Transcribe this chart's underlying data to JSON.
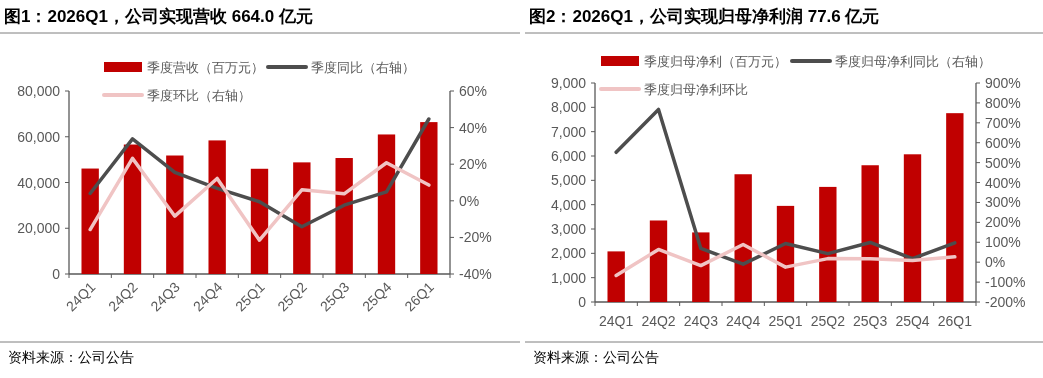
{
  "chart_data": [
    {
      "type": "bar",
      "title": "图1：2026Q1，公司实现营收 664.0 亿元",
      "categories": [
        "24Q1",
        "24Q2",
        "24Q3",
        "24Q4",
        "25Q1",
        "25Q2",
        "25Q3",
        "25Q4",
        "26Q1"
      ],
      "series": [
        {
          "name": "季度营收（百万元）",
          "color": "#c00000",
          "values": [
            46100,
            56600,
            51800,
            58400,
            46000,
            48800,
            50700,
            61000,
            66400
          ]
        },
        {
          "name": "季度同比（右轴）",
          "type": "line",
          "axis": "y2",
          "color": "#4d4d4d",
          "values": [
            4,
            33.8,
            15.5,
            6.8,
            -0.5,
            -14.2,
            -2.4,
            4.9,
            44.7
          ]
        },
        {
          "name": "季度环比（右轴）",
          "type": "line",
          "axis": "y2",
          "color": "#f0c4c4",
          "values": [
            -15.7,
            23.2,
            -8.4,
            12.2,
            -21.5,
            6,
            3.8,
            20.8,
            8.6
          ]
        }
      ],
      "ylim": [
        0,
        80000
      ],
      "yticks": [
        0,
        {
          "value": 20000,
          "label": "20,000"
        },
        {
          "value": 40000,
          "label": "40,000"
        },
        {
          "value": 60000,
          "label": "60,000"
        },
        {
          "value": 80000,
          "label": "80,000"
        }
      ],
      "y2lim": [
        -40,
        60
      ],
      "y2ticks": [
        {
          "value": -40,
          "label": "-40%"
        },
        {
          "value": -20,
          "label": "-20%"
        },
        {
          "value": 0,
          "label": "0%"
        },
        {
          "value": 20,
          "label": "20%"
        },
        {
          "value": 40,
          "label": "40%"
        },
        {
          "value": 60,
          "label": "60%"
        }
      ],
      "legend": "top",
      "grid": false,
      "annotations": [
        "资料来源：公司公告"
      ]
    },
    {
      "type": "bar",
      "title": "图2：2026Q1，公司实现归母净利润 77.6 亿元",
      "categories": [
        "24Q1",
        "24Q2",
        "24Q3",
        "24Q4",
        "25Q1",
        "25Q2",
        "25Q3",
        "25Q4",
        "26Q1"
      ],
      "series": [
        {
          "name": "季度归母净利（百万元）",
          "color": "#c00000",
          "values": [
            2080,
            3350,
            2860,
            5250,
            3950,
            4730,
            5620,
            6070,
            7760
          ]
        },
        {
          "name": "季度归母净利同比（右轴）",
          "type": "line",
          "axis": "y2",
          "color": "#4d4d4d",
          "values": [
            552,
            767,
            69,
            -10,
            94,
            43,
            99,
            18,
            97
          ]
        },
        {
          "name": "季度归母净利环比",
          "type": "line",
          "axis": "y2",
          "color": "#f0c4c4",
          "values": [
            -67,
            64,
            -17,
            89,
            -25,
            18,
            17,
            8,
            27
          ]
        }
      ],
      "ylim": [
        0,
        9000
      ],
      "yticks": [
        0,
        {
          "value": 1000,
          "label": "1,000"
        },
        {
          "value": 2000,
          "label": "2,000"
        },
        {
          "value": 3000,
          "label": "3,000"
        },
        {
          "value": 4000,
          "label": "4,000"
        },
        {
          "value": 5000,
          "label": "5,000"
        },
        {
          "value": 6000,
          "label": "6,000"
        },
        {
          "value": 7000,
          "label": "7,000"
        },
        {
          "value": 8000,
          "label": "8,000"
        },
        {
          "value": 9000,
          "label": "9,000"
        }
      ],
      "y2lim": [
        -200,
        900
      ],
      "y2ticks": [
        {
          "value": -200,
          "label": "-200%"
        },
        {
          "value": -100,
          "label": "-100%"
        },
        {
          "value": 0,
          "label": "0%"
        },
        {
          "value": 100,
          "label": "100%"
        },
        {
          "value": 200,
          "label": "200%"
        },
        {
          "value": 300,
          "label": "300%"
        },
        {
          "value": 400,
          "label": "400%"
        },
        {
          "value": 500,
          "label": "500%"
        },
        {
          "value": 600,
          "label": "600%"
        },
        {
          "value": 700,
          "label": "700%"
        },
        {
          "value": 800,
          "label": "800%"
        },
        {
          "value": 900,
          "label": "900%"
        }
      ],
      "legend": "top",
      "grid": false,
      "annotations": [
        "资料来源：公司公告"
      ]
    }
  ]
}
